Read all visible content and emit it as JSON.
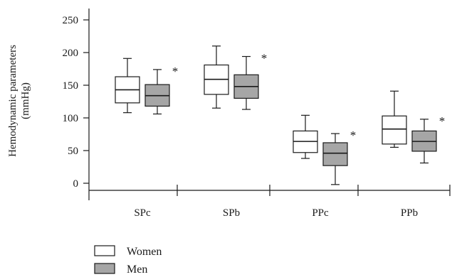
{
  "chart_data": {
    "type": "boxplot",
    "ylabel_lines": [
      "Hemodynamic parameters",
      "(mmHg)"
    ],
    "ylim": [
      -10,
      260
    ],
    "yticks": [
      0,
      50,
      100,
      150,
      200,
      250
    ],
    "categories": [
      "SPc",
      "SPb",
      "PPc",
      "PPb"
    ],
    "series": [
      {
        "name": "Women",
        "color": "#ffffff",
        "boxes": [
          {
            "min": 108,
            "q1": 123,
            "median": 143,
            "q3": 163,
            "max": 191,
            "marker": ""
          },
          {
            "min": 115,
            "q1": 136,
            "median": 159,
            "q3": 181,
            "max": 210,
            "marker": ""
          },
          {
            "min": 38,
            "q1": 47,
            "median": 64,
            "q3": 80,
            "max": 104,
            "marker": ""
          },
          {
            "min": 55,
            "q1": 60,
            "median": 83,
            "q3": 103,
            "max": 141,
            "marker": ""
          }
        ]
      },
      {
        "name": "Men",
        "color": "#a6a6a6",
        "boxes": [
          {
            "min": 106,
            "q1": 118,
            "median": 134,
            "q3": 151,
            "max": 174,
            "marker": "*"
          },
          {
            "min": 113,
            "q1": 130,
            "median": 148,
            "q3": 166,
            "max": 194,
            "marker": "*"
          },
          {
            "min": -2,
            "q1": 27,
            "median": 46,
            "q3": 62,
            "max": 76,
            "marker": "*"
          },
          {
            "min": 31,
            "q1": 49,
            "median": 64,
            "q3": 80,
            "max": 98,
            "marker": "*"
          }
        ]
      }
    ],
    "legend_position": "bottom-left"
  }
}
